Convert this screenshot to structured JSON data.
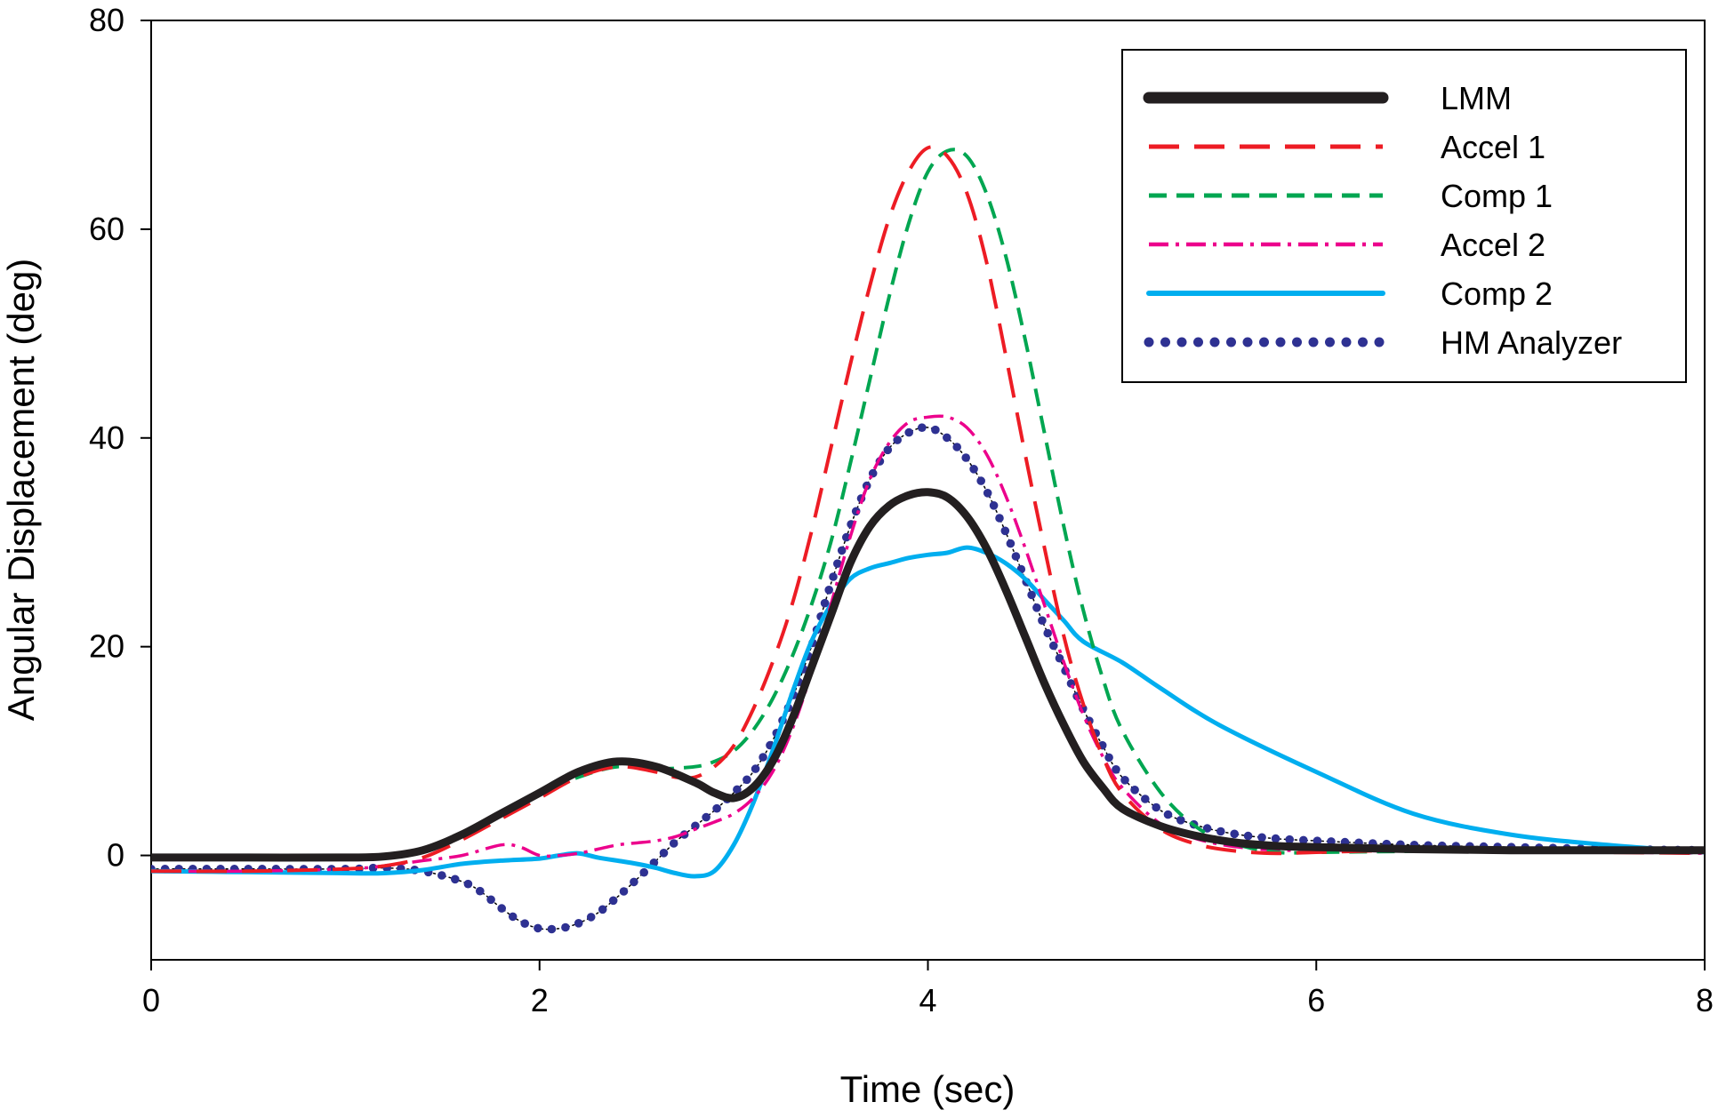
{
  "chart_data": {
    "type": "line",
    "title": "",
    "xlabel": "Time (sec)",
    "ylabel": "Angular Displacement (deg)",
    "xlim": [
      0,
      8
    ],
    "ylim": [
      -10,
      80
    ],
    "xticks": [
      0,
      2,
      4,
      6,
      8
    ],
    "yticks": [
      0,
      20,
      40,
      60,
      80
    ],
    "xtick_labels": [
      "0",
      "2",
      "4",
      "6",
      "8"
    ],
    "ytick_labels": [
      "0",
      "20",
      "40",
      "60",
      "80"
    ],
    "grid": false,
    "legend_position": "top-right",
    "series": [
      {
        "name": "LMM",
        "color": "#231f20",
        "style": "solid-thick",
        "x": [
          0,
          0.5,
          1.0,
          1.2,
          1.4,
          1.6,
          1.8,
          2.0,
          2.2,
          2.4,
          2.6,
          2.8,
          2.9,
          3.0,
          3.1,
          3.2,
          3.3,
          3.4,
          3.5,
          3.6,
          3.7,
          3.8,
          3.9,
          4.0,
          4.1,
          4.2,
          4.3,
          4.4,
          4.5,
          4.6,
          4.7,
          4.8,
          4.9,
          5.0,
          5.2,
          5.4,
          5.6,
          5.8,
          6.0,
          6.5,
          7.0,
          7.5,
          8.0
        ],
        "y": [
          -0.2,
          -0.2,
          -0.2,
          -0.1,
          0.5,
          2.0,
          4.0,
          6.0,
          8.0,
          9.0,
          8.5,
          7.0,
          6.0,
          5.5,
          6.5,
          9.0,
          13.0,
          18.0,
          23.0,
          28.0,
          31.5,
          33.5,
          34.5,
          34.8,
          34.3,
          32.5,
          29.5,
          25.5,
          21.0,
          16.5,
          12.5,
          9.0,
          6.5,
          4.5,
          2.8,
          1.8,
          1.2,
          0.9,
          0.8,
          0.6,
          0.5,
          0.5,
          0.5
        ]
      },
      {
        "name": "Accel 1",
        "color": "#ed1c24",
        "style": "long-dash",
        "x": [
          0,
          0.5,
          1.0,
          1.2,
          1.4,
          1.6,
          1.8,
          2.0,
          2.2,
          2.4,
          2.6,
          2.7,
          2.8,
          2.9,
          3.0,
          3.1,
          3.2,
          3.3,
          3.4,
          3.5,
          3.6,
          3.7,
          3.8,
          3.9,
          4.0,
          4.1,
          4.2,
          4.3,
          4.4,
          4.5,
          4.6,
          4.7,
          4.8,
          4.9,
          5.0,
          5.2,
          5.4,
          5.6,
          5.8,
          6.0,
          6.5,
          7.0,
          7.5,
          8.0
        ],
        "y": [
          -1.5,
          -1.5,
          -1.3,
          -1.0,
          -0.2,
          1.5,
          3.5,
          5.5,
          7.5,
          8.5,
          8.0,
          7.5,
          7.5,
          8.5,
          10.5,
          14.0,
          18.5,
          24.0,
          31.0,
          39.0,
          47.0,
          54.5,
          61.0,
          65.5,
          67.8,
          67.0,
          63.5,
          57.0,
          48.0,
          38.5,
          29.5,
          21.0,
          14.5,
          9.5,
          6.0,
          2.5,
          1.0,
          0.4,
          0.2,
          0.3,
          0.5,
          0.4,
          0.3,
          0.2
        ]
      },
      {
        "name": "Comp 1",
        "color": "#00a651",
        "style": "dash",
        "x": [
          0,
          0.5,
          1.0,
          1.2,
          1.4,
          1.6,
          1.8,
          2.0,
          2.2,
          2.4,
          2.6,
          2.8,
          2.9,
          3.0,
          3.1,
          3.2,
          3.3,
          3.4,
          3.5,
          3.6,
          3.7,
          3.8,
          3.9,
          4.0,
          4.1,
          4.2,
          4.3,
          4.4,
          4.5,
          4.6,
          4.7,
          4.8,
          4.9,
          5.0,
          5.2,
          5.4,
          5.6,
          5.8,
          6.0,
          6.5,
          7.0,
          7.5,
          8.0
        ],
        "y": [
          -0.3,
          -0.3,
          -0.2,
          0.0,
          0.5,
          2.0,
          4.0,
          6.0,
          7.5,
          8.5,
          8.3,
          8.5,
          9.0,
          10.0,
          12.0,
          15.0,
          19.0,
          24.0,
          30.0,
          37.5,
          45.5,
          53.5,
          60.5,
          65.5,
          67.5,
          67.0,
          63.5,
          57.5,
          49.5,
          40.5,
          31.5,
          23.5,
          17.0,
          12.0,
          6.0,
          2.5,
          1.0,
          0.3,
          0.3,
          0.4,
          0.5,
          0.5,
          0.3
        ]
      },
      {
        "name": "Accel 2",
        "color": "#ec008c",
        "style": "dash-dot",
        "x": [
          0,
          0.5,
          1.0,
          1.2,
          1.4,
          1.6,
          1.8,
          1.9,
          2.0,
          2.1,
          2.2,
          2.3,
          2.4,
          2.5,
          2.6,
          2.7,
          2.8,
          2.9,
          3.0,
          3.1,
          3.2,
          3.3,
          3.4,
          3.5,
          3.6,
          3.7,
          3.8,
          3.9,
          4.0,
          4.1,
          4.2,
          4.3,
          4.4,
          4.5,
          4.6,
          4.7,
          4.8,
          4.9,
          5.0,
          5.2,
          5.4,
          5.6,
          5.8,
          6.0,
          6.5,
          7.0,
          7.5,
          8.0
        ],
        "y": [
          -1.5,
          -1.5,
          -1.3,
          -1.0,
          -0.5,
          0.0,
          1.0,
          0.8,
          0.0,
          0.0,
          0.2,
          0.6,
          1.0,
          1.2,
          1.4,
          1.8,
          2.5,
          3.2,
          4.0,
          5.5,
          8.0,
          12.0,
          17.5,
          24.0,
          30.5,
          36.0,
          39.5,
          41.5,
          42.0,
          42.0,
          41.0,
          38.5,
          34.5,
          29.5,
          24.0,
          18.5,
          13.5,
          9.5,
          6.5,
          3.0,
          1.5,
          0.8,
          0.5,
          0.5,
          0.4,
          0.3,
          0.3,
          0.2
        ]
      },
      {
        "name": "Comp 2",
        "color": "#00aeef",
        "style": "solid",
        "x": [
          0,
          0.5,
          1.0,
          1.2,
          1.4,
          1.6,
          1.8,
          2.0,
          2.1,
          2.2,
          2.3,
          2.4,
          2.5,
          2.6,
          2.7,
          2.8,
          2.9,
          3.0,
          3.1,
          3.2,
          3.3,
          3.4,
          3.5,
          3.6,
          3.7,
          3.8,
          3.9,
          4.0,
          4.1,
          4.2,
          4.3,
          4.4,
          4.5,
          4.6,
          4.7,
          4.8,
          5.0,
          5.2,
          5.5,
          6.0,
          6.5,
          7.0,
          7.5,
          8.0
        ],
        "y": [
          -1.5,
          -1.6,
          -1.7,
          -1.7,
          -1.4,
          -0.8,
          -0.5,
          -0.3,
          0.0,
          0.2,
          -0.2,
          -0.5,
          -0.8,
          -1.2,
          -1.7,
          -2.0,
          -1.5,
          1.0,
          5.0,
          10.0,
          15.5,
          20.5,
          24.0,
          26.5,
          27.5,
          28.0,
          28.5,
          28.8,
          29.0,
          29.5,
          29.0,
          28.0,
          26.5,
          24.5,
          22.5,
          20.5,
          18.5,
          16.0,
          12.5,
          8.0,
          4.0,
          2.0,
          1.0,
          0.3
        ]
      },
      {
        "name": "HM Analyzer",
        "color": "#2e3192",
        "style": "dotted",
        "x": [
          0,
          0.5,
          1.0,
          1.2,
          1.4,
          1.6,
          1.7,
          1.8,
          1.9,
          2.0,
          2.1,
          2.2,
          2.3,
          2.4,
          2.5,
          2.6,
          2.7,
          2.8,
          2.9,
          3.0,
          3.1,
          3.2,
          3.3,
          3.4,
          3.5,
          3.6,
          3.7,
          3.8,
          3.9,
          4.0,
          4.1,
          4.2,
          4.3,
          4.4,
          4.5,
          4.6,
          4.7,
          4.8,
          4.9,
          5.0,
          5.2,
          5.4,
          5.6,
          5.8,
          6.0,
          6.5,
          7.0,
          7.5,
          8.0
        ],
        "y": [
          -1.3,
          -1.3,
          -1.3,
          -1.2,
          -1.5,
          -2.5,
          -3.5,
          -5.0,
          -6.3,
          -7.0,
          -7.0,
          -6.5,
          -5.5,
          -4.0,
          -2.3,
          -0.5,
          1.3,
          2.8,
          4.3,
          6.0,
          8.0,
          11.0,
          15.0,
          20.0,
          26.0,
          31.5,
          36.0,
          39.0,
          40.5,
          41.0,
          40.0,
          38.0,
          35.0,
          31.0,
          26.5,
          22.0,
          18.0,
          14.0,
          10.5,
          7.5,
          4.3,
          2.8,
          2.0,
          1.6,
          1.4,
          1.0,
          0.8,
          0.6,
          0.5
        ]
      }
    ]
  }
}
